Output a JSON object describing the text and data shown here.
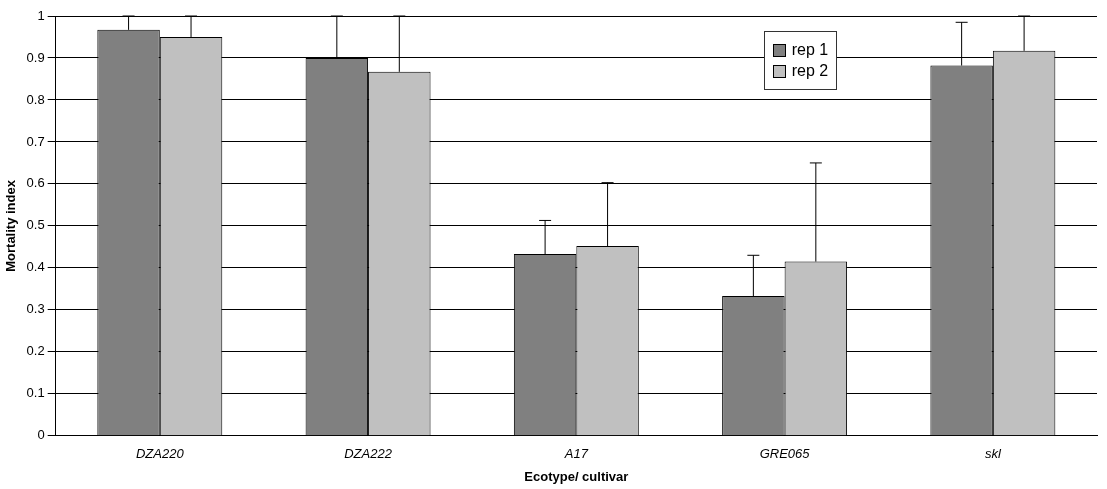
{
  "chart_data": {
    "type": "bar",
    "xlabel": "Ecotype/ cultivar",
    "ylabel": "Mortality index",
    "categories": [
      "DZA220",
      "DZA222",
      "A17",
      "GRE065",
      "skl"
    ],
    "series": [
      {
        "name": "rep 1",
        "color": "#808080",
        "values": [
          0.967,
          0.9,
          0.433,
          0.333,
          0.882
        ],
        "errors": [
          [
            0.967,
            1
          ],
          [
            0.9,
            1
          ],
          [
            0.433,
            0.513
          ],
          [
            0.333,
            0.43
          ],
          [
            0.882,
            0.985
          ]
        ]
      },
      {
        "name": "rep 2",
        "color": "#c0c0c0",
        "values": [
          0.95,
          0.867,
          0.452,
          0.415,
          0.917
        ],
        "errors": [
          [
            0.95,
            1
          ],
          [
            0.867,
            1
          ],
          [
            0.452,
            0.603
          ],
          [
            0.415,
            0.65
          ],
          [
            0.917,
            1
          ]
        ]
      }
    ],
    "ylim": [
      0,
      1
    ],
    "yticks": [
      0,
      0.1,
      0.2,
      0.3,
      0.4,
      0.5,
      0.6,
      0.7,
      0.8,
      0.9,
      1
    ],
    "grid": "y",
    "legend": "top right"
  }
}
